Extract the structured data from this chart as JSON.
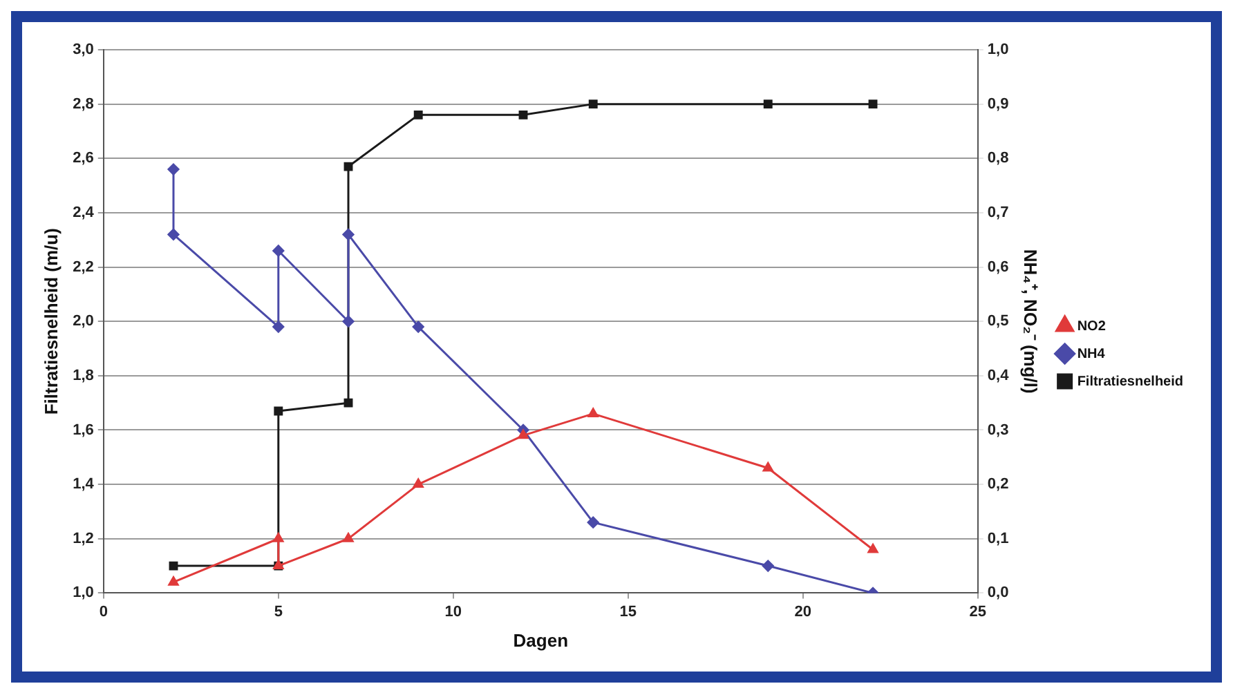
{
  "chart_data": {
    "type": "line",
    "xlabel": "Dagen",
    "ylabel": "Filtratiesnelheid (m/u)",
    "y2label": "NH₄⁺, NO₂⁻ (mg/l)",
    "xlim": [
      0,
      25
    ],
    "xticks": [
      0,
      5,
      10,
      15,
      20,
      25
    ],
    "ylim": [
      1.0,
      3.0
    ],
    "yticks": [
      {
        "value": 1.0,
        "label": "1,0"
      },
      {
        "value": 1.2,
        "label": "1,2"
      },
      {
        "value": 1.4,
        "label": "1,4"
      },
      {
        "value": 1.6,
        "label": "1,6"
      },
      {
        "value": 1.8,
        "label": "1,8"
      },
      {
        "value": 2.0,
        "label": "2,0"
      },
      {
        "value": 2.2,
        "label": "2,2"
      },
      {
        "value": 2.4,
        "label": "2,4"
      },
      {
        "value": 2.6,
        "label": "2,6"
      },
      {
        "value": 2.8,
        "label": "2,8"
      },
      {
        "value": 3.0,
        "label": "3,0"
      }
    ],
    "y2lim": [
      0.0,
      1.0
    ],
    "y2ticks": [
      {
        "value": 0.0,
        "label": "0,0"
      },
      {
        "value": 0.1,
        "label": "0,1"
      },
      {
        "value": 0.2,
        "label": "0,2"
      },
      {
        "value": 0.3,
        "label": "0,3"
      },
      {
        "value": 0.4,
        "label": "0,4"
      },
      {
        "value": 0.5,
        "label": "0,5"
      },
      {
        "value": 0.6,
        "label": "0,6"
      },
      {
        "value": 0.7,
        "label": "0,7"
      },
      {
        "value": 0.8,
        "label": "0,8"
      },
      {
        "value": 0.9,
        "label": "0,9"
      },
      {
        "value": 1.0,
        "label": "1,0"
      }
    ],
    "grid": "y",
    "legend": "right",
    "line_style": "solid",
    "series": [
      {
        "name": "Filtratiesnelheid",
        "color": "#1a1a1a",
        "marker": "square",
        "x": [
          2,
          5,
          5,
          7,
          7,
          9,
          12,
          14,
          19,
          22
        ],
        "values": [
          1.1,
          1.1,
          1.67,
          1.7,
          2.57,
          2.76,
          2.76,
          2.8,
          2.8,
          2.8
        ]
      },
      {
        "name": "NH4",
        "color": "#4a4aa8",
        "marker": "diamond",
        "axis": "y2",
        "x": [
          2,
          2,
          5,
          5,
          7,
          7,
          9,
          12,
          14,
          19,
          22
        ],
        "values": [
          0.78,
          0.66,
          0.49,
          0.63,
          0.5,
          0.66,
          0.49,
          0.3,
          0.13,
          0.05,
          0.0
        ]
      },
      {
        "name": "NO2",
        "color": "#e03a3a",
        "marker": "triangle",
        "axis": "y2",
        "x": [
          2,
          5,
          5,
          7,
          9,
          12,
          14,
          19,
          22
        ],
        "values": [
          0.02,
          0.1,
          0.05,
          0.1,
          0.2,
          0.29,
          0.33,
          0.23,
          0.08
        ]
      }
    ]
  }
}
